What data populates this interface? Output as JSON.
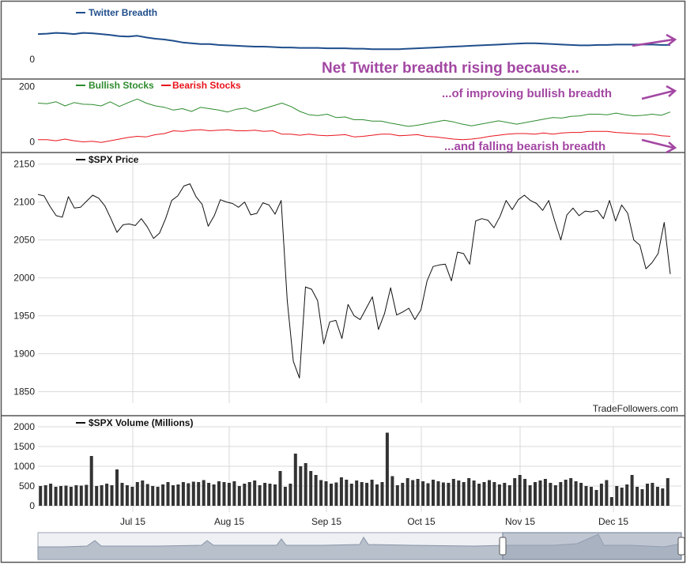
{
  "colors": {
    "twitter": "#1f4e8c",
    "bullish": "#2e8b2e",
    "bearish": "#e8141c",
    "price": "#111111",
    "volume": "#333333",
    "annotation": "#a347a3",
    "grid": "#d9d9d9",
    "border": "#555555"
  },
  "annotations": {
    "headline": "Net Twitter breadth rising because...",
    "bullish_note": "...of improving bullish breadth",
    "bearish_note": "...and falling bearish breadth"
  },
  "watermark": "TradeFollowers.com",
  "x_axis_labels": [
    "Jul 15",
    "Aug 15",
    "Sep 15",
    "Oct 15",
    "Nov 15",
    "Dec 15"
  ],
  "chart_data": [
    {
      "type": "line",
      "panel": "twitter",
      "series": [
        {
          "name": "Twitter Breadth",
          "values": [
            60,
            61,
            63,
            62,
            60,
            63,
            62,
            60,
            58,
            55,
            54,
            56,
            52,
            49,
            47,
            44,
            40,
            38,
            36,
            36,
            34,
            33,
            32,
            31,
            30,
            30,
            29,
            28,
            28,
            27,
            27,
            27,
            26,
            26,
            26,
            25,
            25,
            24,
            24,
            24,
            24,
            25,
            26,
            27,
            28,
            29,
            30,
            31,
            32,
            33,
            34,
            35,
            36,
            37,
            38,
            38,
            37,
            36,
            35,
            34,
            33,
            33,
            34,
            34,
            35,
            35,
            35,
            35,
            35,
            34,
            34
          ]
        }
      ],
      "yticks": [
        0
      ],
      "ylim": [
        -40,
        100
      ]
    },
    {
      "type": "line",
      "panel": "bull_bear",
      "series": [
        {
          "name": "Bullish Stocks",
          "values": [
            140,
            138,
            145,
            130,
            142,
            136,
            135,
            130,
            145,
            128,
            142,
            155,
            140,
            130,
            125,
            115,
            120,
            110,
            125,
            120,
            115,
            108,
            118,
            122,
            110,
            120,
            130,
            140,
            128,
            110,
            98,
            95,
            100,
            88,
            90,
            80,
            80,
            75,
            75,
            68,
            62,
            56,
            60,
            66,
            72,
            78,
            72,
            64,
            58,
            64,
            70,
            76,
            70,
            64,
            70,
            76,
            82,
            88,
            86,
            92,
            94,
            100,
            100,
            98,
            104,
            98,
            94,
            96,
            100,
            96,
            108
          ]
        },
        {
          "name": "Bearish Stocks",
          "values": [
            8,
            8,
            4,
            10,
            4,
            0,
            2,
            -2,
            4,
            10,
            16,
            20,
            18,
            26,
            30,
            40,
            38,
            42,
            44,
            40,
            42,
            44,
            40,
            40,
            42,
            38,
            40,
            28,
            28,
            24,
            28,
            24,
            22,
            24,
            26,
            18,
            20,
            24,
            28,
            28,
            22,
            24,
            26,
            20,
            18,
            14,
            10,
            8,
            10,
            14,
            20,
            24,
            28,
            30,
            30,
            28,
            32,
            28,
            32,
            34,
            34,
            38,
            38,
            38,
            34,
            32,
            30,
            28,
            28,
            22,
            20
          ]
        }
      ],
      "yticks": [
        0,
        200
      ],
      "ylim": [
        -30,
        210
      ]
    },
    {
      "type": "line",
      "panel": "price",
      "series": [
        {
          "name": "$SPX Price",
          "values": [
            2110,
            2108,
            2094,
            2082,
            2080,
            2107,
            2092,
            2093,
            2101,
            2109,
            2105,
            2095,
            2078,
            2060,
            2070,
            2071,
            2069,
            2078,
            2067,
            2052,
            2059,
            2078,
            2102,
            2108,
            2121,
            2124,
            2107,
            2097,
            2068,
            2082,
            2103,
            2100,
            2098,
            2093,
            2100,
            2083,
            2085,
            2099,
            2096,
            2084,
            2102,
            1970,
            1890,
            1868,
            1988,
            1985,
            1970,
            1913,
            1942,
            1944,
            1920,
            1965,
            1950,
            1945,
            1960,
            1975,
            1932,
            1953,
            1987,
            1951,
            1955,
            1960,
            1945,
            1958,
            1996,
            2015,
            2017,
            2018,
            1996,
            2034,
            2032,
            2018,
            2075,
            2078,
            2076,
            2066,
            2081,
            2102,
            2090,
            2103,
            2109,
            2102,
            2098,
            2089,
            2102,
            2075,
            2050,
            2083,
            2092,
            2082,
            2088,
            2087,
            2089,
            2078,
            2102,
            2075,
            2096,
            2085,
            2050,
            2043,
            2012,
            2020,
            2032,
            2073,
            2005
          ]
        }
      ],
      "yticks": [
        1850,
        1900,
        1950,
        2000,
        2050,
        2100,
        2150
      ],
      "ylim": [
        1835,
        2160
      ]
    },
    {
      "type": "bar",
      "panel": "volume",
      "series": [
        {
          "name": "$SPX Volume (Millions)",
          "values": [
            500,
            520,
            560,
            480,
            500,
            510,
            480,
            520,
            510,
            530,
            1260,
            500,
            520,
            560,
            520,
            920,
            580,
            520,
            480,
            600,
            640,
            550,
            500,
            480,
            540,
            600,
            520,
            540,
            600,
            570,
            610,
            600,
            650,
            580,
            540,
            620,
            600,
            580,
            620,
            500,
            560,
            600,
            640,
            520,
            580,
            560,
            540,
            880,
            480,
            560,
            1320,
            1000,
            1080,
            880,
            780,
            650,
            620,
            560,
            590,
            720,
            660,
            560,
            640,
            600,
            580,
            660,
            540,
            600,
            1850,
            750,
            520,
            580,
            700,
            650,
            680,
            620,
            570,
            660,
            620,
            590,
            580,
            680,
            640,
            600,
            700,
            640,
            560,
            600,
            650,
            600,
            540,
            580,
            520,
            700,
            780,
            680,
            520,
            600,
            640,
            680,
            580,
            520,
            600,
            660,
            700,
            620,
            580,
            500,
            480,
            400,
            560,
            650,
            220,
            500,
            460,
            540,
            780,
            480,
            420,
            560,
            580,
            480,
            440,
            700
          ]
        }
      ],
      "yticks": [
        0,
        500,
        1000,
        1500,
        2000
      ],
      "ylim": [
        0,
        2000
      ]
    }
  ]
}
